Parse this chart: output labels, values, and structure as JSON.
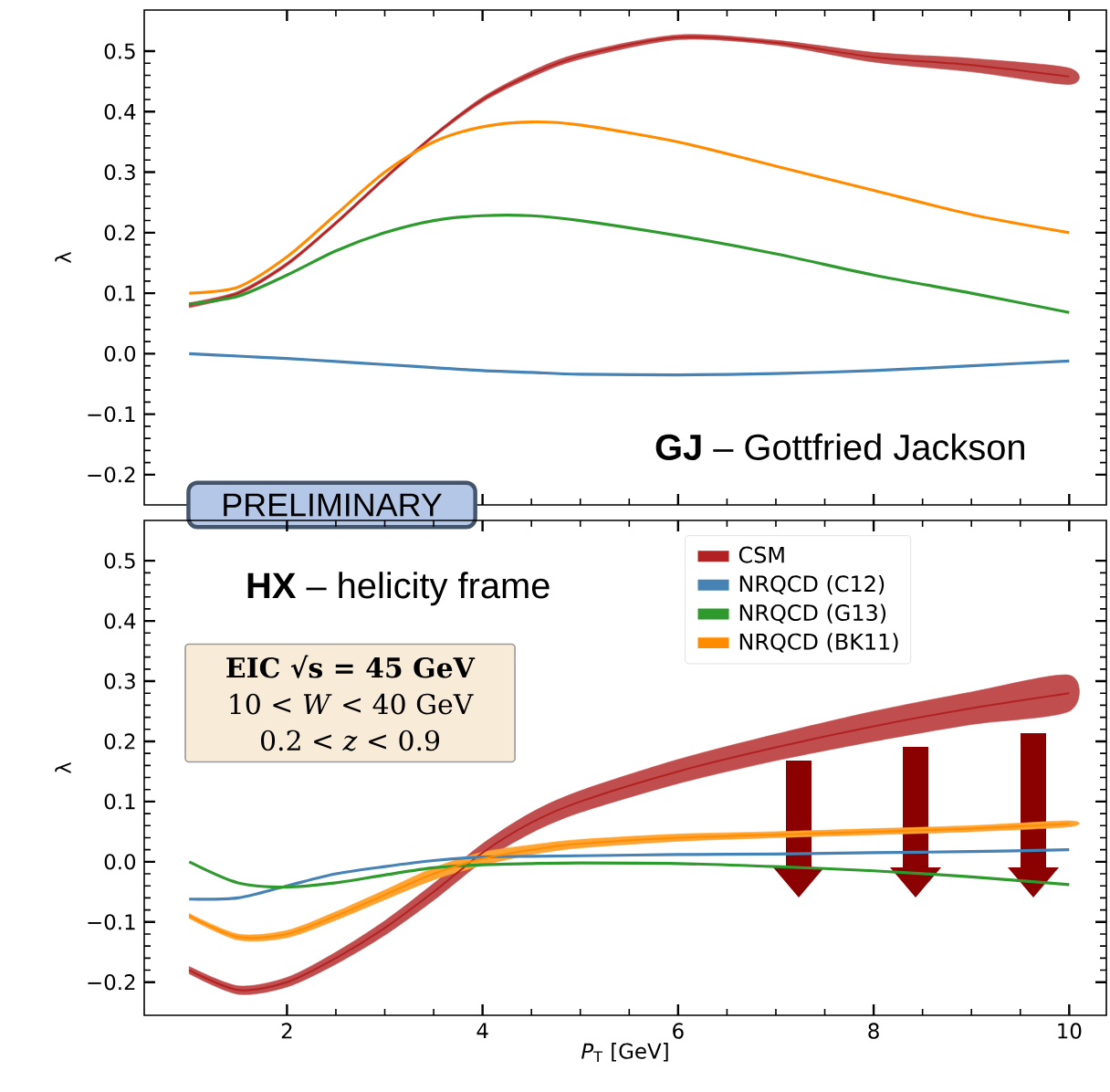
{
  "chart_data": [
    {
      "type": "line",
      "xlim": [
        0.54,
        10.38
      ],
      "ylim": [
        -0.25,
        0.568
      ],
      "xticks": [
        2,
        4,
        6,
        8,
        10
      ],
      "tick_labels": "y",
      "ylabel": "λ",
      "yticks": [
        {
          "value": -0.2,
          "label": "−0.2"
        },
        {
          "value": -0.1,
          "label": "−0.1"
        },
        {
          "value": 0,
          "label": "0.0"
        },
        {
          "value": 0.1,
          "label": "0.1"
        },
        {
          "value": 0.2,
          "label": "0.2"
        },
        {
          "value": 0.3,
          "label": "0.3"
        },
        {
          "value": 0.4,
          "label": "0.4"
        },
        {
          "value": 0.5,
          "label": "0.5"
        }
      ],
      "x": [
        1,
        1.5,
        2,
        2.5,
        3,
        3.5,
        4,
        4.5,
        5,
        6,
        7,
        8,
        9,
        10
      ],
      "series": [
        {
          "color": "#b22222",
          "values": [
            0.08,
            0.1,
            0.148,
            0.216,
            0.29,
            0.36,
            0.42,
            0.462,
            0.492,
            0.523,
            0.514,
            0.49,
            0.477,
            0.458
          ],
          "lower": [
            0.076,
            0.097,
            0.145,
            0.213,
            0.287,
            0.357,
            0.416,
            0.457,
            0.487,
            0.519,
            0.51,
            0.482,
            0.466,
            0.445
          ],
          "upper": [
            0.084,
            0.103,
            0.151,
            0.219,
            0.293,
            0.363,
            0.424,
            0.467,
            0.497,
            0.527,
            0.518,
            0.498,
            0.488,
            0.472
          ]
        },
        {
          "color": "#4682b4",
          "values": [
            0.0,
            -0.004,
            -0.008,
            -0.013,
            -0.018,
            -0.023,
            -0.028,
            -0.031,
            -0.034,
            -0.035,
            -0.033,
            -0.028,
            -0.02,
            -0.012
          ]
        },
        {
          "color": "#2e9a2e",
          "values": [
            0.082,
            0.095,
            0.13,
            0.17,
            0.2,
            0.22,
            0.228,
            0.228,
            0.22,
            0.195,
            0.165,
            0.13,
            0.1,
            0.068
          ]
        },
        {
          "color": "#ff8c00",
          "values": [
            0.1,
            0.11,
            0.16,
            0.23,
            0.3,
            0.35,
            0.375,
            0.383,
            0.378,
            0.35,
            0.31,
            0.27,
            0.23,
            0.2
          ]
        }
      ],
      "annotations": [
        "**GJ** – Gottfried Jackson",
        "PRELIMINARY"
      ]
    },
    {
      "type": "line",
      "xlim": [
        0.54,
        10.38
      ],
      "ylim": [
        -0.255,
        0.567
      ],
      "xticks": [
        2,
        4,
        6,
        8,
        10
      ],
      "xlabel": "*P*$_{T}$ [GeV]",
      "ylabel": "λ",
      "legend": "top right",
      "yticks": [
        {
          "value": -0.2,
          "label": "−0.2"
        },
        {
          "value": -0.1,
          "label": "−0.1"
        },
        {
          "value": 0,
          "label": "0.0"
        },
        {
          "value": 0.1,
          "label": "0.1"
        },
        {
          "value": 0.2,
          "label": "0.2"
        },
        {
          "value": 0.3,
          "label": "0.3"
        },
        {
          "value": 0.4,
          "label": "0.4"
        },
        {
          "value": 0.5,
          "label": "0.5"
        }
      ],
      "x": [
        1,
        1.5,
        2,
        2.5,
        3,
        3.5,
        4,
        4.5,
        5,
        6,
        7,
        8,
        9,
        10
      ],
      "series": [
        {
          "name": "CSM",
          "color": "#b22222",
          "values": [
            -0.18,
            -0.213,
            -0.2,
            -0.16,
            -0.11,
            -0.05,
            0.015,
            0.065,
            0.1,
            0.15,
            0.19,
            0.225,
            0.255,
            0.28
          ],
          "lower": [
            -0.186,
            -0.22,
            -0.208,
            -0.17,
            -0.122,
            -0.064,
            0.0,
            0.048,
            0.082,
            0.13,
            0.168,
            0.2,
            0.228,
            0.25
          ],
          "upper": [
            -0.174,
            -0.206,
            -0.192,
            -0.15,
            -0.098,
            -0.036,
            0.03,
            0.082,
            0.118,
            0.17,
            0.212,
            0.25,
            0.282,
            0.31
          ]
        },
        {
          "name": "NRQCD (C12)",
          "color": "#4682b4",
          "values": [
            -0.062,
            -0.06,
            -0.04,
            -0.02,
            -0.008,
            0.002,
            0.008,
            0.009,
            0.01,
            0.012,
            0.013,
            0.015,
            0.017,
            0.02
          ]
        },
        {
          "name": "NRQCD (G13)",
          "color": "#2e9a2e",
          "values": [
            0.0,
            -0.035,
            -0.042,
            -0.035,
            -0.022,
            -0.01,
            -0.005,
            -0.003,
            -0.002,
            -0.003,
            -0.008,
            -0.015,
            -0.025,
            -0.038
          ]
        },
        {
          "name": "NRQCD (BK11)",
          "color": "#ff8c00",
          "values": [
            -0.09,
            -0.125,
            -0.12,
            -0.09,
            -0.055,
            -0.02,
            0.005,
            0.02,
            0.03,
            0.04,
            0.045,
            0.05,
            0.055,
            0.063
          ],
          "lower": [
            -0.094,
            -0.13,
            -0.126,
            -0.097,
            -0.063,
            -0.03,
            -0.006,
            0.012,
            0.023,
            0.034,
            0.04,
            0.045,
            0.05,
            0.058
          ],
          "upper": [
            -0.086,
            -0.12,
            -0.114,
            -0.083,
            -0.047,
            -0.01,
            0.016,
            0.028,
            0.037,
            0.046,
            0.05,
            0.055,
            0.06,
            0.068
          ]
        }
      ],
      "annotations": [
        "**HX** – helicity frame",
        "**EIC √s = 45 GeV**",
        "10 < *W* < 40 GeV",
        "0.2 < *z* < 0.9"
      ]
    }
  ]
}
